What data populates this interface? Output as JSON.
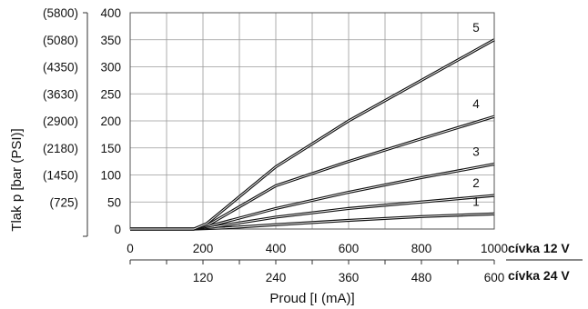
{
  "chart_data": {
    "type": "line",
    "title": "",
    "ylabel": "Tlak p [bar (PSI)]",
    "xlabel": "Proud [I (mA)]",
    "ylim": [
      0,
      400
    ],
    "xlim": [
      0,
      1000
    ],
    "grid": true,
    "y_ticks": [
      0,
      50,
      100,
      150,
      200,
      250,
      300,
      350,
      400
    ],
    "y_psi_labels": [
      "(725)",
      "(1450)",
      "(2180)",
      "(2900)",
      "(3630)",
      "(4350)",
      "(5080)",
      "(5800)"
    ],
    "x_12v": {
      "label": "cívka 12 V",
      "ticks": [
        "0",
        "200",
        "400",
        "600",
        "800",
        "1000"
      ]
    },
    "x_24v": {
      "label": "cívka 24 V",
      "ticks": [
        "120",
        "240",
        "360",
        "480",
        "600"
      ]
    },
    "series": [
      {
        "name": "1",
        "x": [
          0,
          175,
          260,
          400,
          600,
          800,
          1000
        ],
        "y": [
          0,
          0,
          2,
          8,
          16,
          23,
          28
        ]
      },
      {
        "name": "2",
        "x": [
          0,
          175,
          230,
          400,
          600,
          800,
          1000
        ],
        "y": [
          0,
          0,
          4,
          22,
          38,
          50,
          62
        ]
      },
      {
        "name": "3",
        "x": [
          0,
          175,
          220,
          400,
          600,
          800,
          1000
        ],
        "y": [
          0,
          0,
          6,
          38,
          68,
          95,
          120
        ]
      },
      {
        "name": "4",
        "x": [
          0,
          175,
          215,
          400,
          600,
          800,
          1000
        ],
        "y": [
          0,
          0,
          8,
          80,
          125,
          167,
          208
        ]
      },
      {
        "name": "5",
        "x": [
          0,
          175,
          210,
          400,
          600,
          800,
          1000
        ],
        "y": [
          0,
          0,
          10,
          115,
          200,
          275,
          350
        ]
      }
    ]
  }
}
